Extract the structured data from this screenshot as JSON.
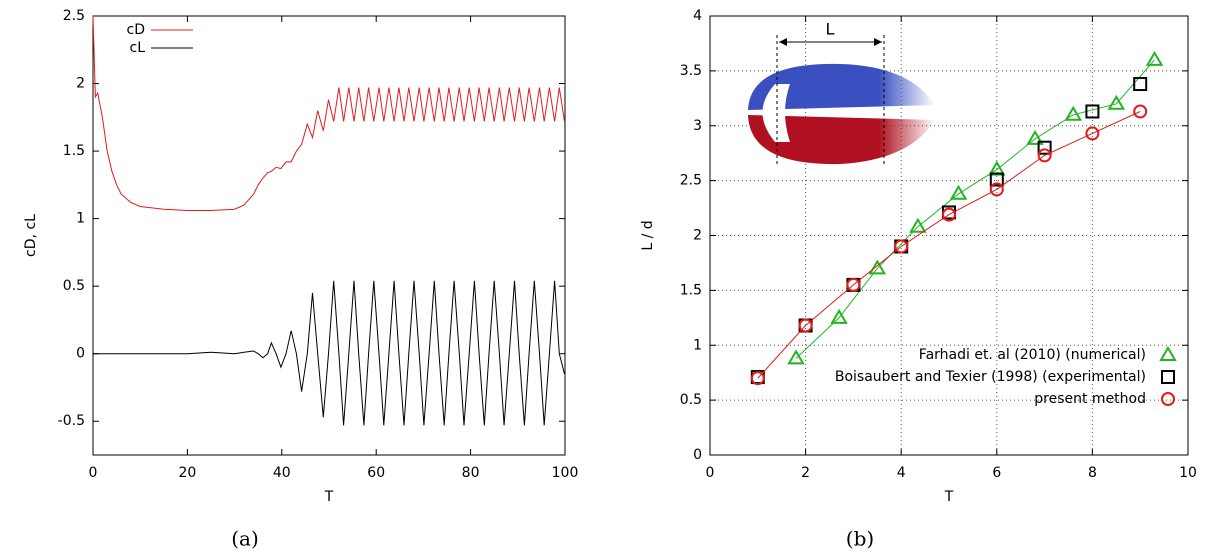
{
  "chart_data": [
    {
      "type": "line",
      "caption": "(a)",
      "xlabel": "T",
      "ylabel": "cD, cL",
      "x": [
        0,
        0.5,
        1,
        2,
        3,
        4,
        5,
        6,
        8,
        10,
        15,
        20,
        25,
        30,
        32,
        34,
        35,
        36,
        37,
        37.8,
        38.8,
        39.8,
        40.9,
        42,
        43.1,
        44.2,
        45.4,
        46.5,
        47.6,
        48.8,
        49.9,
        51.0,
        52.1,
        53.1,
        54.2,
        55.3,
        56.3,
        57.4,
        58.4,
        59.5,
        60.6,
        61.6,
        62.7,
        63.8,
        64.8,
        65.9,
        66.9,
        68.0,
        69.1,
        70.1,
        71.2,
        72.3,
        73.3,
        74.4,
        75.4,
        76.5,
        77.6,
        78.6,
        79.7,
        80.8,
        81.8,
        82.9,
        83.9,
        85.0,
        86.1,
        87.1,
        88.2,
        89.3,
        90.3,
        91.4,
        92.4,
        93.5,
        94.6,
        95.6,
        96.7,
        97.8,
        98.8,
        99.9
      ],
      "series": [
        {
          "name": "cD",
          "color": "#e41a1c",
          "values": [
            2.5,
            1.9,
            1.93,
            1.75,
            1.5,
            1.35,
            1.25,
            1.18,
            1.12,
            1.09,
            1.07,
            1.06,
            1.06,
            1.07,
            1.1,
            1.18,
            1.25,
            1.3,
            1.34,
            1.35,
            1.38,
            1.37,
            1.42,
            1.42,
            1.5,
            1.55,
            1.7,
            1.6,
            1.8,
            1.65,
            1.88,
            1.72,
            1.97,
            1.72,
            1.97,
            1.72,
            1.97,
            1.72,
            1.97,
            1.72,
            1.97,
            1.72,
            1.97,
            1.72,
            1.97,
            1.72,
            1.97,
            1.72,
            1.97,
            1.72,
            1.97,
            1.72,
            1.97,
            1.72,
            1.97,
            1.72,
            1.97,
            1.72,
            1.97,
            1.72,
            1.97,
            1.72,
            1.97,
            1.72,
            1.97,
            1.72,
            1.97,
            1.72,
            1.97,
            1.72,
            1.97,
            1.72,
            1.97,
            1.72,
            1.97,
            1.72,
            1.97,
            1.72
          ]
        },
        {
          "name": "cL",
          "color": "#000000",
          "values": [
            0,
            0,
            0,
            0,
            0,
            0,
            0,
            0,
            0,
            0,
            0,
            0,
            0.01,
            0,
            0.01,
            0.02,
            0,
            -0.03,
            0,
            0.08,
            0,
            -0.1,
            0,
            0.17,
            0,
            -0.28,
            0,
            0.45,
            0,
            -0.47,
            0,
            0.54,
            0,
            -0.53,
            0,
            0.54,
            0,
            -0.53,
            0,
            0.54,
            0,
            -0.53,
            0,
            0.54,
            0,
            -0.53,
            0,
            0.54,
            0,
            -0.53,
            0,
            0.54,
            0,
            -0.53,
            0,
            0.54,
            0,
            -0.53,
            0,
            0.54,
            0,
            -0.53,
            0,
            0.54,
            0,
            -0.53,
            0,
            0.54,
            0,
            -0.53,
            0,
            0.54,
            0,
            -0.53,
            0,
            0.54,
            0,
            -0.15
          ]
        }
      ],
      "xlim": [
        0,
        100
      ],
      "xticks": [
        0,
        20,
        40,
        60,
        80,
        100
      ],
      "ylim": [
        -0.75,
        2.5
      ],
      "yticks": [
        -0.5,
        0,
        0.5,
        1,
        1.5,
        2,
        2.5
      ],
      "grid": false,
      "legend": "top-left"
    },
    {
      "type": "scatter",
      "caption": "(b)",
      "xlabel": "T",
      "ylabel": "L / d",
      "annotation": "L",
      "series": [
        {
          "name": "Farhadi et. al (2010) (numerical)",
          "color": "#22b522",
          "marker": "triangle",
          "line": true,
          "x": [
            1.8,
            2.7,
            3.5,
            4.35,
            5.2,
            6.0,
            6.8,
            7.6,
            8.5,
            9.3
          ],
          "values": [
            0.88,
            1.25,
            1.7,
            2.08,
            2.38,
            2.6,
            2.88,
            3.1,
            3.2,
            3.6
          ]
        },
        {
          "name": "Boisaubert and Texier (1998) (experimental)",
          "color": "#000000",
          "marker": "square",
          "line": false,
          "x": [
            1,
            2,
            3,
            4,
            5,
            6,
            7,
            8,
            9
          ],
          "values": [
            0.71,
            1.18,
            1.55,
            1.9,
            2.21,
            2.51,
            2.8,
            3.13,
            3.38
          ]
        },
        {
          "name": "present method",
          "color": "#e41a1c",
          "marker": "circle",
          "line": true,
          "x": [
            1,
            2,
            3,
            4,
            5,
            6,
            7,
            8,
            9
          ],
          "values": [
            0.7,
            1.18,
            1.55,
            1.9,
            2.19,
            2.42,
            2.73,
            2.93,
            3.13
          ]
        }
      ],
      "xlim": [
        0,
        10
      ],
      "xticks": [
        0,
        2,
        4,
        6,
        8,
        10
      ],
      "ylim": [
        0,
        4
      ],
      "yticks": [
        0,
        0.5,
        1,
        1.5,
        2,
        2.5,
        3,
        3.5,
        4
      ],
      "grid": true,
      "legend": "bottom-right"
    }
  ]
}
